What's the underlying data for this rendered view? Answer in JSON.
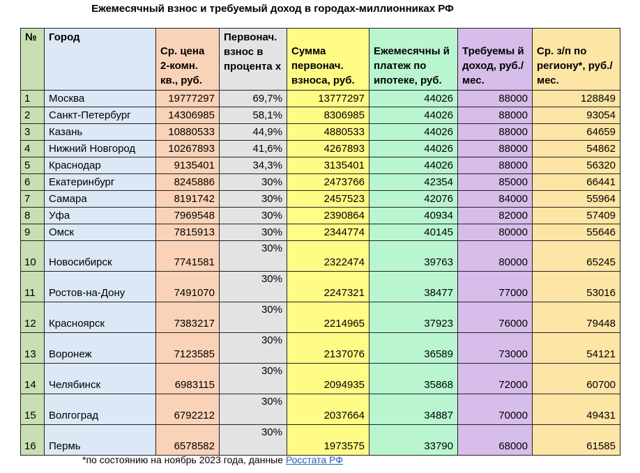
{
  "title": "Ежемесячный взнос и требуемый доход в городах-миллионниках РФ",
  "headers": {
    "num": "№",
    "city": "Город",
    "price": "Ср. цена 2-комн. кв., руб.",
    "pct": "Первонач. взнос в процента х",
    "sum": "Сумма первонач. взноса, руб.",
    "monthly": "Ежемесячны й платеж по ипотеке, руб.",
    "income": "Требуемы й доход, руб./мес.",
    "salary": "Ср. з/п по региону*, руб./мес."
  },
  "rows": [
    {
      "num": "1",
      "city": "Москва",
      "price": "19777297",
      "pct": "69,7%",
      "sum": "13777297",
      "monthly": "44026",
      "income": "88000",
      "salary": "128849"
    },
    {
      "num": "2",
      "city": "Санкт-Петербург",
      "price": "14306985",
      "pct": "58,1%",
      "sum": "8306985",
      "monthly": "44026",
      "income": "88000",
      "salary": "93054"
    },
    {
      "num": "3",
      "city": "Казань",
      "price": "10880533",
      "pct": "44,9%",
      "sum": "4880533",
      "monthly": "44026",
      "income": "88000",
      "salary": "64659"
    },
    {
      "num": "4",
      "city": "Нижний Новгород",
      "price": "10267893",
      "pct": "41,6%",
      "sum": "4267893",
      "monthly": "44026",
      "income": "88000",
      "salary": "54862"
    },
    {
      "num": "5",
      "city": "Краснодар",
      "price": "9135401",
      "pct": "34,3%",
      "sum": "3135401",
      "monthly": "44026",
      "income": "88000",
      "salary": "56320"
    },
    {
      "num": "6",
      "city": "Екатеринбург",
      "price": "8245886",
      "pct": "30%",
      "sum": "2473766",
      "monthly": "42354",
      "income": "85000",
      "salary": "66441"
    },
    {
      "num": "7",
      "city": "Самара",
      "price": "8191742",
      "pct": "30%",
      "sum": "2457523",
      "monthly": "42076",
      "income": "84000",
      "salary": "55964"
    },
    {
      "num": "8",
      "city": "Уфа",
      "price": "7969548",
      "pct": "30%",
      "sum": "2390864",
      "monthly": "40934",
      "income": "82000",
      "salary": "57409"
    },
    {
      "num": "9",
      "city": "Омск",
      "price": "7815913",
      "pct": "30%",
      "sum": "2344774",
      "monthly": "40145",
      "income": "80000",
      "salary": "55646"
    },
    {
      "num": "10",
      "city": "Новосибирск",
      "price": "7741581",
      "pct": "30%",
      "sum": "2322474",
      "monthly": "39763",
      "income": "80000",
      "salary": "65245"
    },
    {
      "num": "11",
      "city": "Ростов-на-Дону",
      "price": "7491070",
      "pct": "30%",
      "sum": "2247321",
      "monthly": "38477",
      "income": "77000",
      "salary": "53016"
    },
    {
      "num": "12",
      "city": "Красноярск",
      "price": "7383217",
      "pct": "30%",
      "sum": "2214965",
      "monthly": "37923",
      "income": "76000",
      "salary": "79448"
    },
    {
      "num": "13",
      "city": "Воронеж",
      "price": "7123585",
      "pct": "30%",
      "sum": "2137076",
      "monthly": "36589",
      "income": "73000",
      "salary": "54121"
    },
    {
      "num": "14",
      "city": "Челябинск",
      "price": "6983115",
      "pct": "30%",
      "sum": "2094935",
      "monthly": "35868",
      "income": "72000",
      "salary": "60700"
    },
    {
      "num": "15",
      "city": "Волгоград",
      "price": "6792212",
      "pct": "30%",
      "sum": "2037664",
      "monthly": "34887",
      "income": "70000",
      "salary": "49431"
    },
    {
      "num": "16",
      "city": "Пермь",
      "price": "6578582",
      "pct": "30%",
      "sum": "1973575",
      "monthly": "33790",
      "income": "68000",
      "salary": "61585"
    }
  ],
  "footnote": {
    "text": "*по состоянию на ноябрь 2023 года, данные",
    "link": "Росстата РФ"
  }
}
